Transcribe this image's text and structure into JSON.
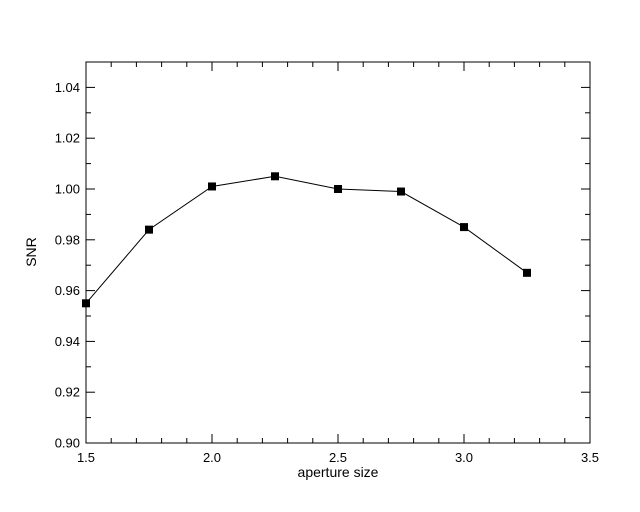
{
  "chart_data": {
    "type": "line",
    "title": "",
    "xlabel": "aperture size",
    "ylabel": "SNR",
    "xlim": [
      1.5,
      3.5
    ],
    "ylim": [
      0.9,
      1.05
    ],
    "xticks": [
      1.5,
      2.0,
      2.5,
      3.0,
      3.5
    ],
    "xtick_labels": [
      "1.5",
      "2.0",
      "2.5",
      "3.0",
      "3.5"
    ],
    "yticks": [
      0.9,
      0.92,
      0.94,
      0.96,
      0.98,
      1.0,
      1.02,
      1.04
    ],
    "ytick_labels": [
      "0.90",
      "0.92",
      "0.94",
      "0.96",
      "0.98",
      "1.00",
      "1.02",
      "1.04"
    ],
    "grid": false,
    "legend": "none",
    "series": [
      {
        "x": [
          1.5,
          1.75,
          2.0,
          2.25,
          2.5,
          2.75,
          3.0,
          3.25
        ],
        "values": [
          0.955,
          0.984,
          1.001,
          1.005,
          1.0,
          0.999,
          0.985,
          0.967
        ],
        "color": "#000000",
        "marker": "square"
      }
    ]
  }
}
